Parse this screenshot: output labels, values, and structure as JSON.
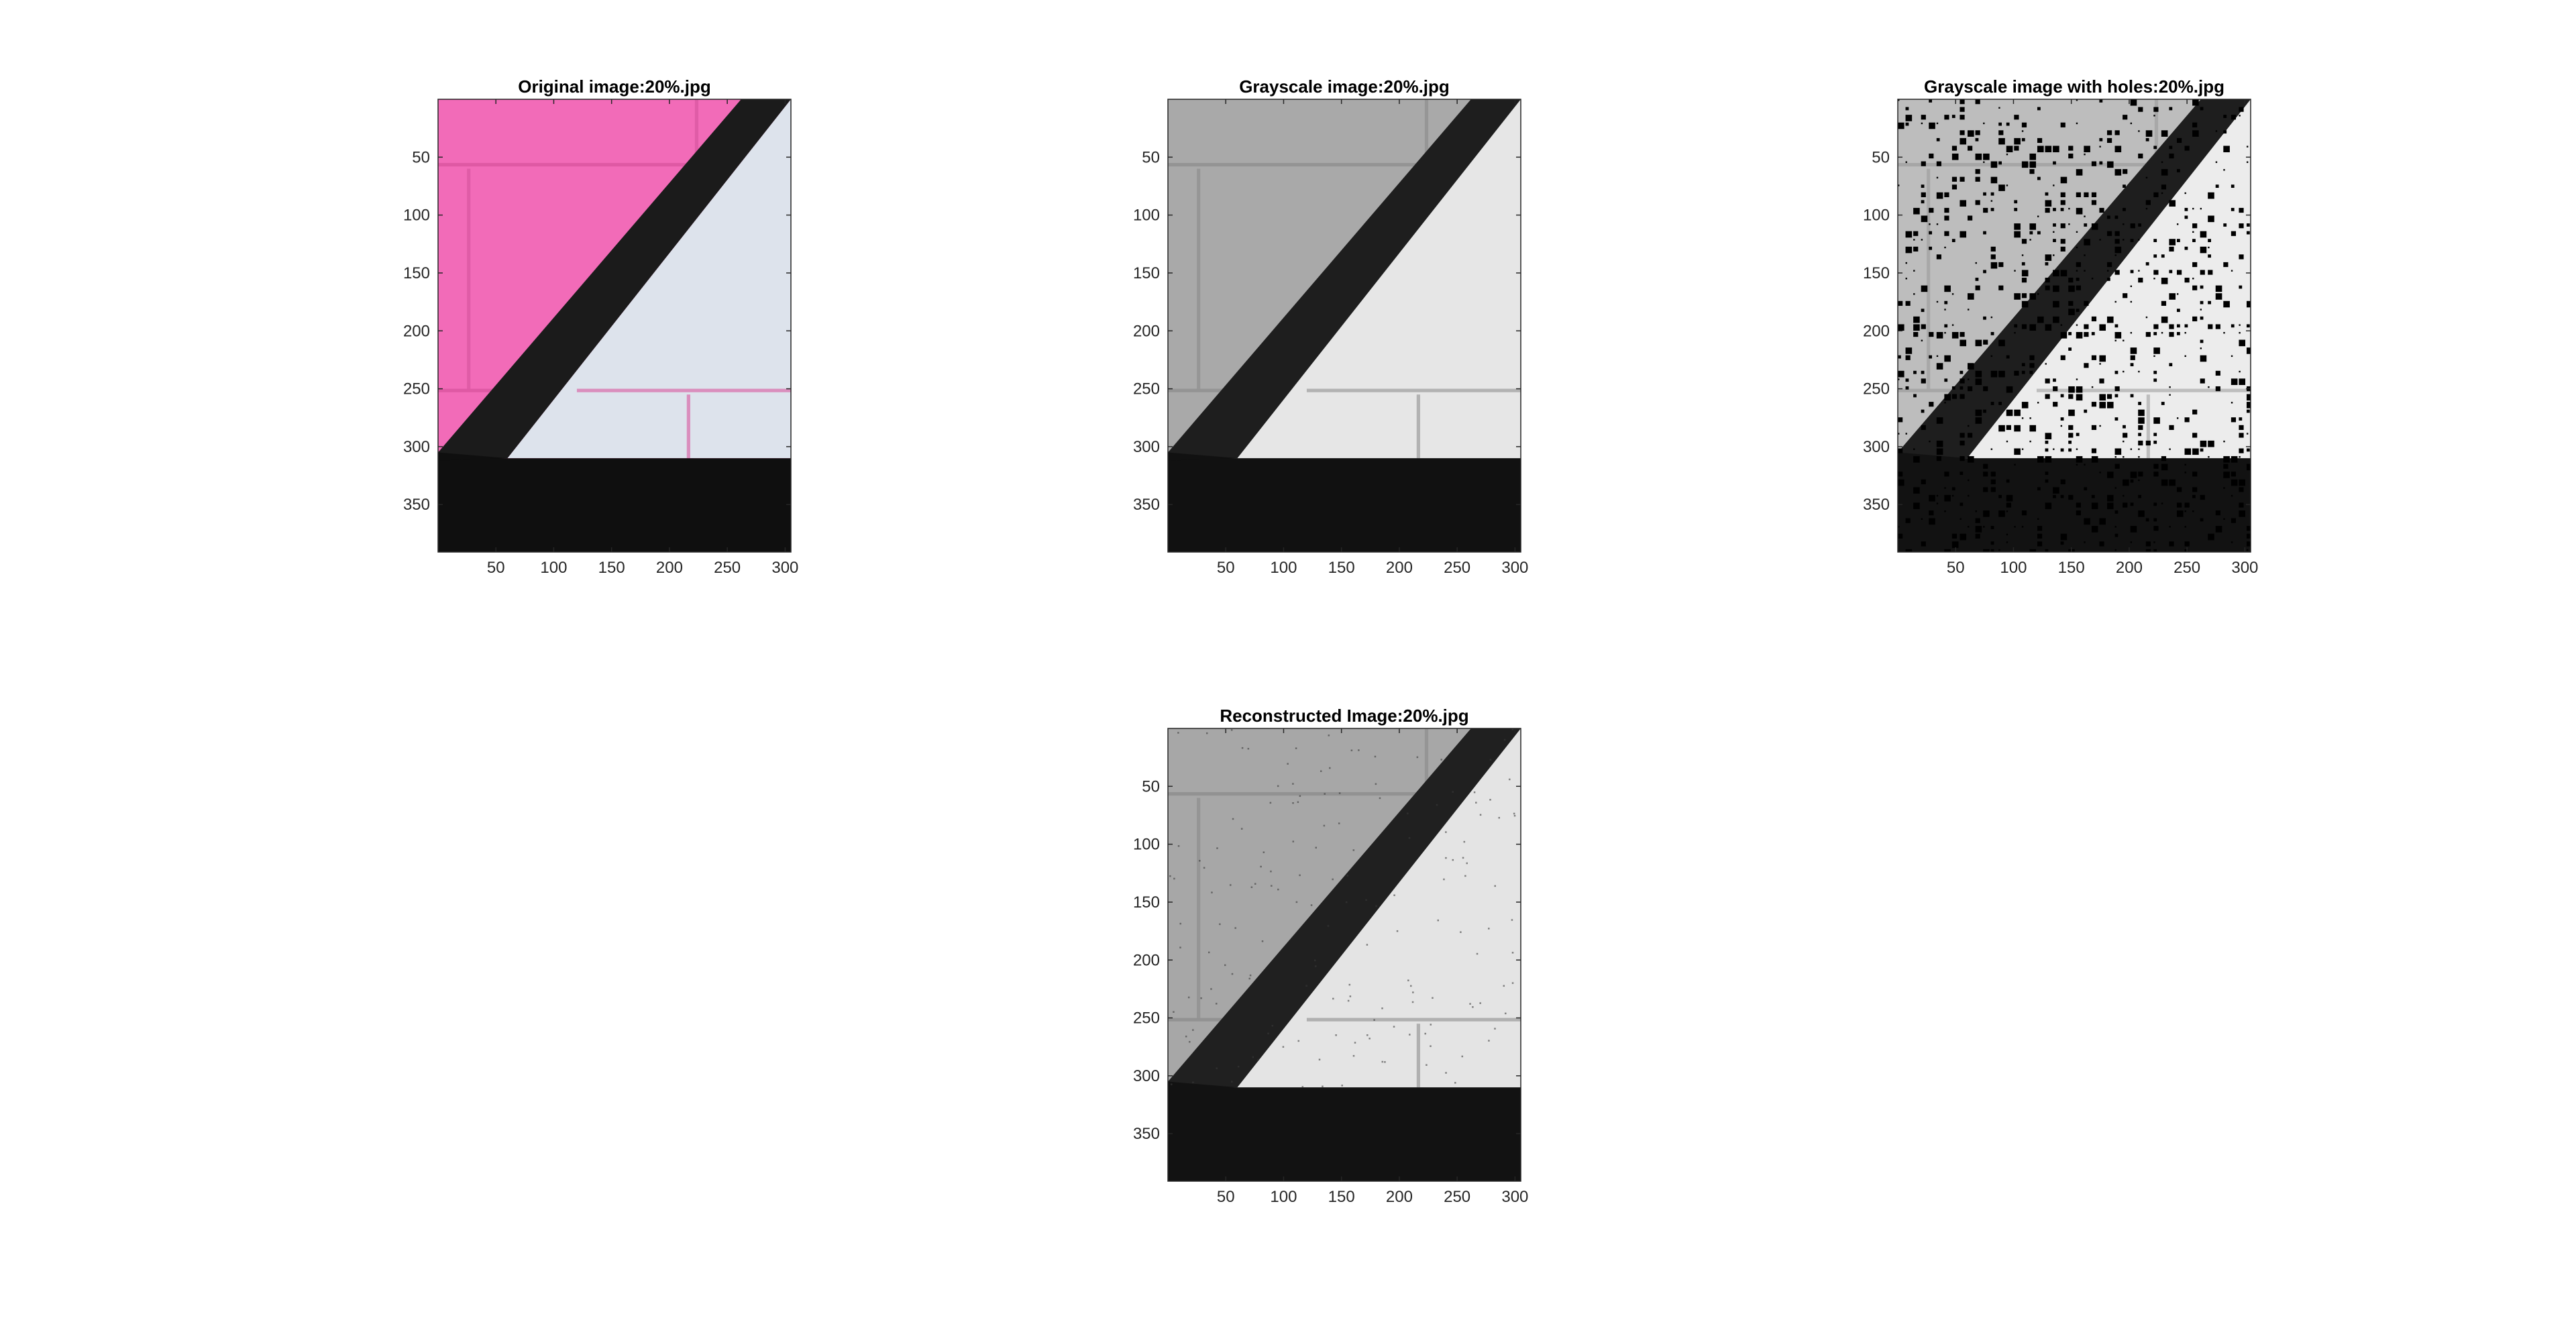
{
  "panels": [
    {
      "id": "original",
      "title": "Original image:20%.jpg",
      "mode": "color",
      "colors": {
        "wall": "#f26bb8",
        "wall_light": "#ea7fc4",
        "stripe": "#1b1b1b",
        "triangle": "#dde3ec",
        "bottom": "#0f0f0f",
        "mortar": "#d9559f"
      },
      "x_ticks": [
        "50",
        "100",
        "150",
        "200",
        "250",
        "300"
      ],
      "y_ticks": [
        "50",
        "100",
        "150",
        "200",
        "250",
        "300",
        "350"
      ],
      "holes": false
    },
    {
      "id": "grayscale",
      "title": "Grayscale image:20%.jpg",
      "mode": "gray",
      "colors": {
        "wall": "#a9a9a9",
        "wall_light": "#b4b4b4",
        "stripe": "#1e1e1e",
        "triangle": "#e6e6e6",
        "bottom": "#111111",
        "mortar": "#8f8f8f"
      },
      "x_ticks": [
        "50",
        "100",
        "150",
        "200",
        "250",
        "300"
      ],
      "y_ticks": [
        "50",
        "100",
        "150",
        "200",
        "250",
        "300",
        "350"
      ],
      "holes": false
    },
    {
      "id": "holes",
      "title": "Grayscale image with holes:20%.jpg",
      "mode": "gray",
      "colors": {
        "wall": "#bdbdbd",
        "wall_light": "#c6c6c6",
        "stripe": "#1e1e1e",
        "triangle": "#ececec",
        "bottom": "#121212",
        "mortar": "#a0a0a0"
      },
      "x_ticks": [
        "50",
        "100",
        "150",
        "200",
        "250",
        "300"
      ],
      "y_ticks": [
        "50",
        "100",
        "150",
        "200",
        "250",
        "300",
        "350"
      ],
      "holes": true
    },
    {
      "id": "reconstructed",
      "title": "Reconstructed Image:20%.jpg",
      "mode": "gray",
      "colors": {
        "wall": "#a7a7a7",
        "wall_light": "#b2b2b2",
        "stripe": "#202020",
        "triangle": "#e4e4e4",
        "bottom": "#121212",
        "mortar": "#8d8d8d"
      },
      "x_ticks": [
        "50",
        "100",
        "150",
        "200",
        "250",
        "300"
      ],
      "y_ticks": [
        "50",
        "100",
        "150",
        "200",
        "250",
        "300",
        "350"
      ],
      "holes": false
    }
  ],
  "image_extent": {
    "x": [
      1,
      305
    ],
    "y": [
      1,
      391
    ]
  },
  "missing_fraction": 0.2
}
